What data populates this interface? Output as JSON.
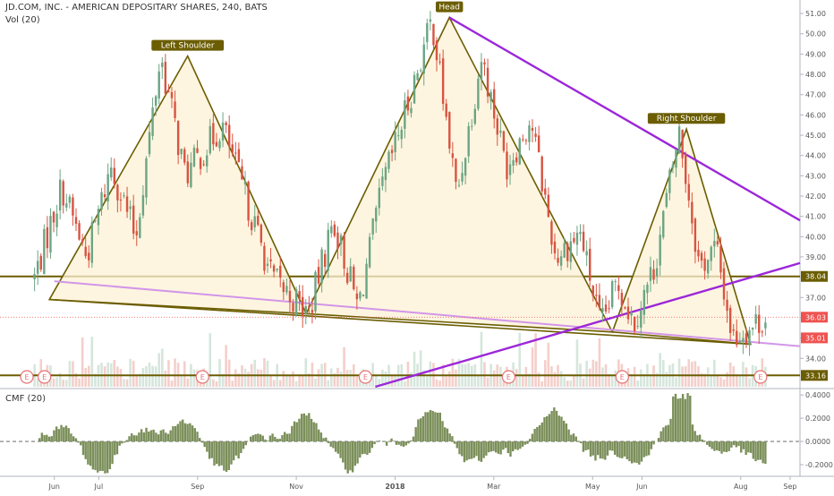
{
  "header": {
    "title": "JD.COM, INC. - AMERICAN DEPOSITARY SHARES, 240, BATS",
    "vol_label": "Vol (20)"
  },
  "colors": {
    "up": "#6ba583",
    "down": "#d75442",
    "pattern_line": "#6b5d00",
    "pattern_fill": "#fdf1d6",
    "trend_purple": "#9c27d9",
    "trend_violet": "#d296e8",
    "level_line": "#6b5d00",
    "level_label_bg": "#6b5d00",
    "price_label_bg": "#ef5350",
    "cmf_fill": "#7b8f5a",
    "earnings": "#e57373"
  },
  "chart_data": [
    {
      "type": "candlestick",
      "title": "JD.COM, INC. - AMERICAN DEPOSITARY SHARES, 240, BATS",
      "x_ticks": [
        "Jun",
        "Jul",
        "Sep",
        "Nov",
        "2018",
        "Mar",
        "May",
        "Jun",
        "Aug",
        "Sep"
      ],
      "y_ticks": [
        34.0,
        35.0,
        36.0,
        37.0,
        38.0,
        39.0,
        40.0,
        41.0,
        42.0,
        43.0,
        44.0,
        45.0,
        46.0,
        47.0,
        48.0,
        49.0,
        50.0,
        51.0
      ],
      "ylim": [
        32.6,
        51.4
      ],
      "horizontal_levels": [
        {
          "value": 38.04,
          "label": "38.04"
        },
        {
          "value": 33.16,
          "label": "33.16"
        }
      ],
      "price_labels": [
        {
          "value": 36.03,
          "label": "36.03"
        },
        {
          "value": 35.01,
          "label": "35.01"
        }
      ],
      "pattern_labels": [
        "Left Shoulder",
        "Head",
        "Right Shoulder"
      ],
      "earnings_marker": "E",
      "earnings_count": 7,
      "swing_points": [
        {
          "date": "May 2017",
          "price": 38.0
        },
        {
          "date": "Jun 2017",
          "price": 42.5
        },
        {
          "date": "Jun 2017",
          "price": 39.0
        },
        {
          "date": "Jul 2017",
          "price": 43.5
        },
        {
          "date": "Jul 2017",
          "price": 40.0
        },
        {
          "date": "Aug 2017",
          "price": 48.9
        },
        {
          "date": "Aug 2017",
          "price": 43.0
        },
        {
          "date": "Sep 2017",
          "price": 45.5
        },
        {
          "date": "Oct 2017",
          "price": 38.0
        },
        {
          "date": "Nov 2017",
          "price": 36.2
        },
        {
          "date": "Nov 2017",
          "price": 40.8
        },
        {
          "date": "Dec 2017",
          "price": 36.5
        },
        {
          "date": "Dec 2017",
          "price": 42.5
        },
        {
          "date": "Jan 2018",
          "price": 46.5
        },
        {
          "date": "Jan 2018",
          "price": 50.7
        },
        {
          "date": "Feb 2018",
          "price": 42.0
        },
        {
          "date": "Feb 2018",
          "price": 48.9
        },
        {
          "date": "Mar 2018",
          "price": 43.5
        },
        {
          "date": "Mar 2018",
          "price": 45.8
        },
        {
          "date": "Apr 2018",
          "price": 39.0
        },
        {
          "date": "Apr 2018",
          "price": 40.2
        },
        {
          "date": "May 2018",
          "price": 35.5
        },
        {
          "date": "May 2018",
          "price": 37.8
        },
        {
          "date": "May 2018",
          "price": 35.8
        },
        {
          "date": "Jun 2018",
          "price": 38.5
        },
        {
          "date": "Jun 2018",
          "price": 45.2
        },
        {
          "date": "Jul 2018",
          "price": 38.5
        },
        {
          "date": "Jul 2018",
          "price": 39.5
        },
        {
          "date": "Jul 2018",
          "price": 35.0
        },
        {
          "date": "Aug 2018",
          "price": 36.03
        }
      ]
    },
    {
      "type": "area",
      "title": "CMF (20)",
      "y_ticks": [
        -0.2,
        0.0,
        0.2,
        0.4
      ],
      "y_tick_labels": [
        "-0.2000",
        "0.0000",
        "0.2000",
        "0.4000"
      ],
      "ylim": [
        -0.3,
        0.44
      ]
    }
  ]
}
